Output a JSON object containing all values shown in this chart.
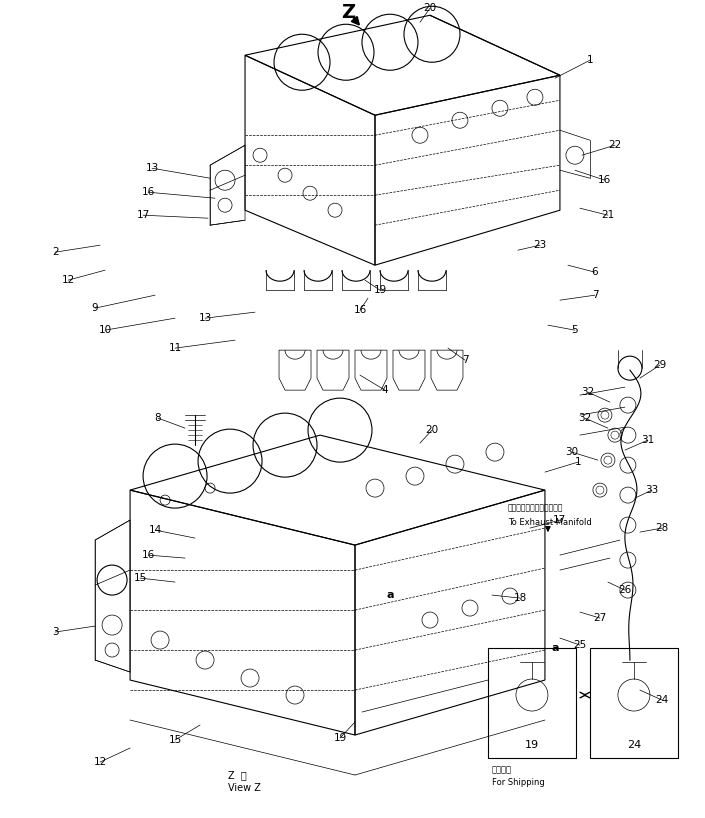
{
  "bg_color": "#ffffff",
  "line_color": "#000000",
  "fig_width": 7.05,
  "fig_height": 8.18,
  "dpi": 100,
  "annotation_text_jp": "エキゾーストマニホールへ",
  "annotation_text_en": "To Exhaust Manifold",
  "shipping_text_jp": "運輸部品",
  "shipping_text_en": "For Shipping",
  "fontsize_label": 7.5,
  "fontsize_annot": 6.0
}
